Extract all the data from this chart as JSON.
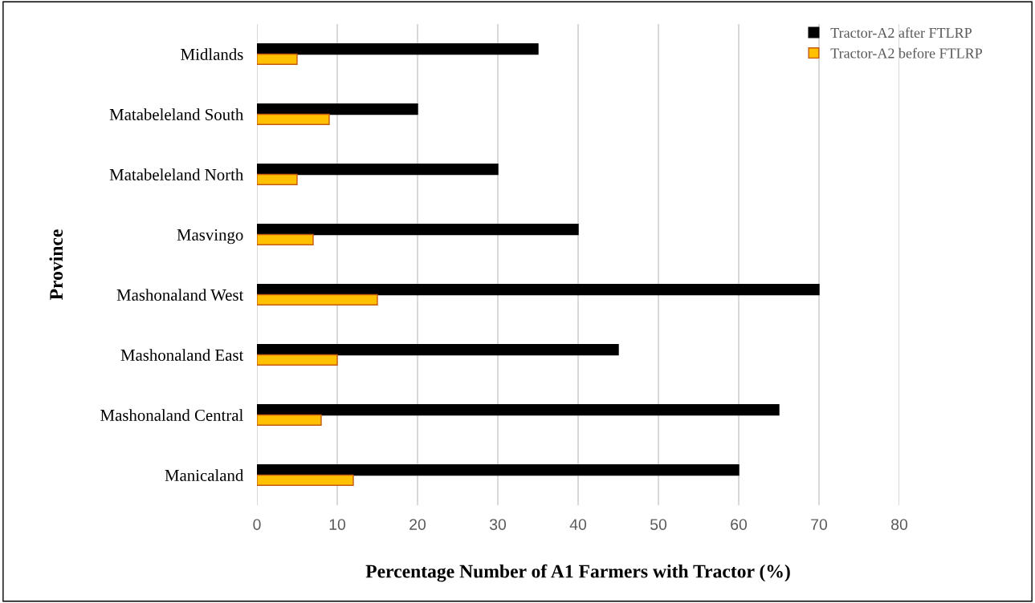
{
  "chart_data": {
    "type": "bar",
    "orientation": "horizontal",
    "categories": [
      "Midlands",
      "Matabeleland South",
      "Matabeleland North",
      "Masvingo",
      "Mashonaland West",
      "Mashonaland East",
      "Mashonaland Central",
      "Manicaland"
    ],
    "series": [
      {
        "name": "Tractor-A2 after FTLRP",
        "color": "#000000",
        "values": [
          35,
          20,
          30,
          40,
          70,
          45,
          65,
          60
        ]
      },
      {
        "name": "Tractor-A2 before FTLRP",
        "color": "#ffc000",
        "values": [
          5,
          9,
          5,
          7,
          15,
          10,
          8,
          12
        ]
      }
    ],
    "xlabel": "Percentage Number of A1 Farmers with Tractor (%)",
    "ylabel": "Province",
    "xlim": [
      0,
      80
    ],
    "xticks": [
      0,
      10,
      20,
      30,
      40,
      50,
      60,
      70,
      80
    ],
    "grid": "x",
    "legend": "top right"
  }
}
